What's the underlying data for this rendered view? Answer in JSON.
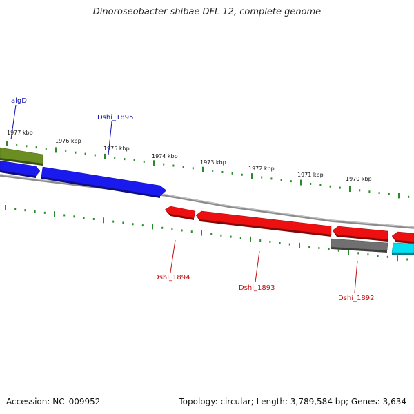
{
  "title": "Dinoroseobacter shibae DFL 12, complete genome",
  "footer": {
    "accession": "Accession: NC_009952",
    "summary": "Topology: circular; Length: 3,789,584 bp; Genes: 3,634"
  },
  "colors": {
    "tick": "#2a8a2a",
    "backbone": "#8c8c8c",
    "label_forward": "#1010b0",
    "label_reverse": "#c01010"
  },
  "kbp_labels": [
    "1977 kbp",
    "1976 kbp",
    "1975 kbp",
    "1974 kbp",
    "1973 kbp",
    "1972 kbp",
    "1971 kbp",
    "1970 kbp"
  ],
  "genes": [
    {
      "name": "algD",
      "strand": "forward",
      "color": "#6b8e23"
    },
    {
      "name": "",
      "strand": "forward",
      "color": "#1a1aee"
    },
    {
      "name": "Dshi_1895",
      "strand": "forward",
      "color": "#1a1aee"
    },
    {
      "name": "Dshi_1894",
      "strand": "reverse",
      "color": "#ee1010"
    },
    {
      "name": "Dshi_1893",
      "strand": "reverse",
      "color": "#ee1010"
    },
    {
      "name": "",
      "strand": "reverse",
      "color": "#ee1010"
    },
    {
      "name": "",
      "strand": "reverse",
      "color": "#ee1010"
    },
    {
      "name": "Dshi_1892",
      "strand": "reverse",
      "color": "#707070"
    },
    {
      "name": "",
      "strand": "reverse",
      "color": "#00e0f0"
    }
  ]
}
